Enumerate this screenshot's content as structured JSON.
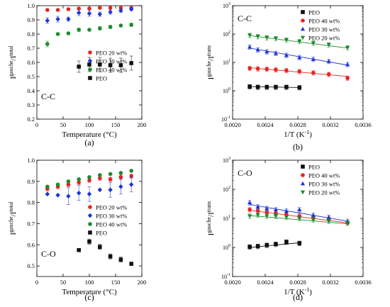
{
  "chart_data": [
    {
      "id": "a",
      "type": "scatter",
      "panel_label": "(a)",
      "corner_label": "C-C",
      "xlabel": "Temperature (°C)",
      "ylabel_base": "I",
      "ylabel_sup": "gauche",
      "ylabel_mid": "/I",
      "ylabel_sup2": "total",
      "xlim": [
        0,
        200
      ],
      "ylim": [
        0.2,
        1.0
      ],
      "x_log": false,
      "y_log": false,
      "xticks": [
        0,
        50,
        100,
        150,
        200
      ],
      "xtick_labels": [
        "0",
        "50",
        "100",
        "150",
        "200"
      ],
      "yticks": [
        0.2,
        0.3,
        0.4,
        0.5,
        0.6,
        0.7,
        0.8,
        0.9,
        1.0
      ],
      "ytick_labels": [
        "0.2",
        "0.3",
        "0.4",
        "0.5",
        "0.6",
        "0.7",
        "0.8",
        "0.9",
        "1.0"
      ],
      "legend_position": "right-middle",
      "series": [
        {
          "name": "PEO 20 wt%",
          "color": "#e8231f",
          "marker": "circle",
          "x": [
            20,
            40,
            60,
            80,
            100,
            120,
            140,
            160,
            180
          ],
          "y": [
            0.97,
            0.97,
            0.975,
            0.98,
            0.98,
            0.985,
            0.985,
            0.985,
            0.985
          ],
          "err": [
            0,
            0,
            0,
            0,
            0,
            0,
            0,
            0,
            0
          ]
        },
        {
          "name": "PEO 30 wt%",
          "color": "#1f35d4",
          "marker": "diamond",
          "x": [
            20,
            40,
            60,
            80,
            100,
            120,
            140,
            160,
            180
          ],
          "y": [
            0.895,
            0.905,
            0.905,
            0.95,
            0.945,
            0.94,
            0.955,
            0.965,
            0.975
          ],
          "err": [
            0.02,
            0.02,
            0.015,
            0.02,
            0.02,
            0.015,
            0.015,
            0.012,
            0.01
          ]
        },
        {
          "name": "PEO 40 wt%",
          "color": "#1c8c2a",
          "marker": "circle",
          "x": [
            20,
            40,
            60,
            80,
            100,
            120,
            140,
            160,
            180
          ],
          "y": [
            0.73,
            0.8,
            0.805,
            0.83,
            0.83,
            0.84,
            0.85,
            0.86,
            0.865
          ],
          "err": [
            0.02,
            0,
            0,
            0.012,
            0,
            0.012,
            0.012,
            0,
            0.012
          ]
        },
        {
          "name": "PEO",
          "color": "#111111",
          "marker": "square",
          "x": [
            80,
            100,
            120,
            140,
            160,
            180
          ],
          "y": [
            0.57,
            0.585,
            0.585,
            0.58,
            0.58,
            0.595
          ],
          "err": [
            0.04,
            0.05,
            0.05,
            0.05,
            0.05,
            0.05
          ]
        }
      ]
    },
    {
      "id": "b",
      "type": "scatter",
      "panel_label": "(b)",
      "corner_label": "C-C",
      "xlabel": "1/T (K",
      "xlabel_sup": "-1",
      "xlabel_end": ")",
      "ylabel_base": "I",
      "ylabel_sup": "gauche",
      "ylabel_mid": "/I",
      "ylabel_sup2": "trans",
      "xlim": [
        0.002,
        0.0036
      ],
      "ylim_exp": [
        -1,
        3
      ],
      "x_log": false,
      "y_log": true,
      "xticks": [
        0.002,
        0.0024,
        0.0028,
        0.0032,
        0.0036
      ],
      "xtick_labels": [
        "0.0020",
        "0.0024",
        "0.0028",
        "0.0032",
        "0.0036"
      ],
      "ytick_exps": [
        -1,
        0,
        1,
        2,
        3
      ],
      "legend_position": "top-right",
      "series": [
        {
          "name": "PEO",
          "color": "#111111",
          "marker": "square",
          "x": [
            0.00221,
            0.00231,
            0.00242,
            0.00253,
            0.00266,
            0.00282
          ],
          "y": [
            1.4,
            1.35,
            1.35,
            1.35,
            1.35,
            1.3
          ],
          "fit": [
            [
              0.00221,
              1.4
            ],
            [
              0.00282,
              1.3
            ]
          ]
        },
        {
          "name": "PEO 40 wt%",
          "color": "#e8231f",
          "marker": "circle",
          "x": [
            0.00221,
            0.00231,
            0.00242,
            0.00253,
            0.00266,
            0.00282,
            0.00299,
            0.00318,
            0.00341
          ],
          "y": [
            6.2,
            6.0,
            5.8,
            5.5,
            5.2,
            4.8,
            4.3,
            3.8,
            2.8
          ],
          "fit": [
            [
              0.00221,
              6.5
            ],
            [
              0.00341,
              3.2
            ]
          ]
        },
        {
          "name": "PEO 30 wt%",
          "color": "#1f35d4",
          "marker": "triangle",
          "x": [
            0.00221,
            0.00231,
            0.00242,
            0.00253,
            0.00266,
            0.00282,
            0.00299,
            0.00318,
            0.00341
          ],
          "y": [
            35,
            28,
            24,
            21,
            18,
            15,
            13,
            11,
            8.5
          ],
          "fit": [
            [
              0.00221,
              32
            ],
            [
              0.00341,
              8
            ]
          ]
        },
        {
          "name": "PEO 20 wt%",
          "color": "#1c8c2a",
          "marker": "triangle-down",
          "x": [
            0.00221,
            0.00231,
            0.00242,
            0.00253,
            0.00266,
            0.00282,
            0.00299,
            0.00318,
            0.00341
          ],
          "y": [
            90,
            82,
            75,
            70,
            62,
            55,
            48,
            42,
            33
          ],
          "fit": [
            [
              0.00221,
              88
            ],
            [
              0.00341,
              32
            ]
          ]
        }
      ]
    },
    {
      "id": "c",
      "type": "scatter",
      "panel_label": "(c)",
      "corner_label": "C-O",
      "xlabel": "Temperature (°C)",
      "ylabel_base": "I",
      "ylabel_sup": "gauche",
      "ylabel_mid": "/I",
      "ylabel_sup2": "total",
      "xlim": [
        0,
        200
      ],
      "ylim": [
        0.45,
        1.0
      ],
      "x_log": false,
      "y_log": false,
      "xticks": [
        0,
        50,
        100,
        150,
        200
      ],
      "xtick_labels": [
        "0",
        "50",
        "100",
        "150",
        "200"
      ],
      "yticks": [
        0.5,
        0.6,
        0.7,
        0.8,
        0.9,
        1.0
      ],
      "ytick_labels": [
        "0.5",
        "0.6",
        "0.7",
        "0.8",
        "0.9",
        "1.0"
      ],
      "legend_position": "right-middle",
      "series": [
        {
          "name": "PEO 20 wt%",
          "color": "#e8231f",
          "marker": "circle",
          "x": [
            20,
            40,
            60,
            80,
            100,
            120,
            140,
            160,
            180
          ],
          "y": [
            0.865,
            0.875,
            0.885,
            0.895,
            0.905,
            0.915,
            0.91,
            0.92,
            0.925
          ],
          "err": [
            0.01,
            0.01,
            0.01,
            0.01,
            0.01,
            0.01,
            0.01,
            0.01,
            0.01
          ]
        },
        {
          "name": "PEO 30 wt%",
          "color": "#1f35d4",
          "marker": "diamond",
          "x": [
            20,
            40,
            60,
            80,
            100,
            120,
            140,
            160,
            180
          ],
          "y": [
            0.84,
            0.835,
            0.83,
            0.845,
            0.84,
            0.86,
            0.86,
            0.875,
            0.885
          ],
          "err": [
            0,
            0,
            0.04,
            0.035,
            0.035,
            0,
            0.035,
            0.035,
            0.035
          ]
        },
        {
          "name": "PEO 40 wt%",
          "color": "#1c8c2a",
          "marker": "circle",
          "x": [
            20,
            40,
            60,
            80,
            100,
            120,
            140,
            160,
            180
          ],
          "y": [
            0.875,
            0.885,
            0.9,
            0.91,
            0.92,
            0.93,
            0.935,
            0.94,
            0.95
          ],
          "err": [
            0,
            0,
            0,
            0,
            0,
            0,
            0,
            0,
            0
          ]
        },
        {
          "name": "PEO",
          "color": "#111111",
          "marker": "square",
          "x": [
            80,
            100,
            120,
            140,
            160,
            180
          ],
          "y": [
            0.575,
            0.615,
            0.59,
            0.545,
            0.53,
            0.51
          ],
          "err": [
            0,
            0.012,
            0.012,
            0.012,
            0.012,
            0.008
          ]
        }
      ]
    },
    {
      "id": "d",
      "type": "scatter",
      "panel_label": "(d)",
      "corner_label": "C-O",
      "xlabel": "1/T (K",
      "xlabel_sup": "-1",
      "xlabel_end": ")",
      "ylabel_base": "I",
      "ylabel_sup": "gauche",
      "ylabel_mid": "/I",
      "ylabel_sup2": "trans",
      "xlim": [
        0.002,
        0.0036
      ],
      "ylim_exp": [
        -1,
        3
      ],
      "x_log": false,
      "y_log": true,
      "xticks": [
        0.002,
        0.0024,
        0.0028,
        0.0032,
        0.0036
      ],
      "xtick_labels": [
        "0.0020",
        "0.0024",
        "0.0028",
        "0.0032",
        "0.0036"
      ],
      "ytick_exps": [
        -1,
        0,
        1,
        2,
        3
      ],
      "legend_position": "top-right",
      "series": [
        {
          "name": "PEO",
          "color": "#111111",
          "marker": "square",
          "x": [
            0.00221,
            0.00231,
            0.00242,
            0.00253,
            0.00266,
            0.00282
          ],
          "y": [
            1.05,
            1.1,
            1.2,
            1.3,
            1.55,
            1.4
          ],
          "fit": [
            [
              0.00221,
              1.0
            ],
            [
              0.00282,
              1.45
            ]
          ]
        },
        {
          "name": "PEO 40 wt%",
          "color": "#e8231f",
          "marker": "circle",
          "x": [
            0.00221,
            0.00231,
            0.00242,
            0.00253,
            0.00266,
            0.00282,
            0.00299,
            0.00318,
            0.00341
          ],
          "y": [
            20,
            18,
            16,
            15,
            14,
            12,
            10.5,
            9,
            7
          ],
          "fit": [
            [
              0.00221,
              19
            ],
            [
              0.00341,
              7
            ]
          ]
        },
        {
          "name": "PEO 30 wt%",
          "color": "#1f35d4",
          "marker": "triangle",
          "x": [
            0.00221,
            0.00231,
            0.00242,
            0.00253,
            0.00266,
            0.00282,
            0.00299,
            0.00318,
            0.00341
          ],
          "y": [
            35,
            25,
            22,
            20,
            18,
            20,
            13,
            11,
            8
          ],
          "fit": [
            [
              0.00221,
              30
            ],
            [
              0.00341,
              8
            ]
          ]
        },
        {
          "name": "PEO 20 wt%",
          "color": "#1c8c2a",
          "marker": "triangle-down",
          "x": [
            0.00221,
            0.00231,
            0.00242,
            0.00253,
            0.00266,
            0.00282,
            0.00299,
            0.00318,
            0.00341
          ],
          "y": [
            12,
            13,
            12,
            12,
            11,
            10,
            9,
            8,
            7
          ],
          "fit": [
            [
              0.00221,
              12.5
            ],
            [
              0.00341,
              6.5
            ]
          ]
        }
      ]
    }
  ]
}
